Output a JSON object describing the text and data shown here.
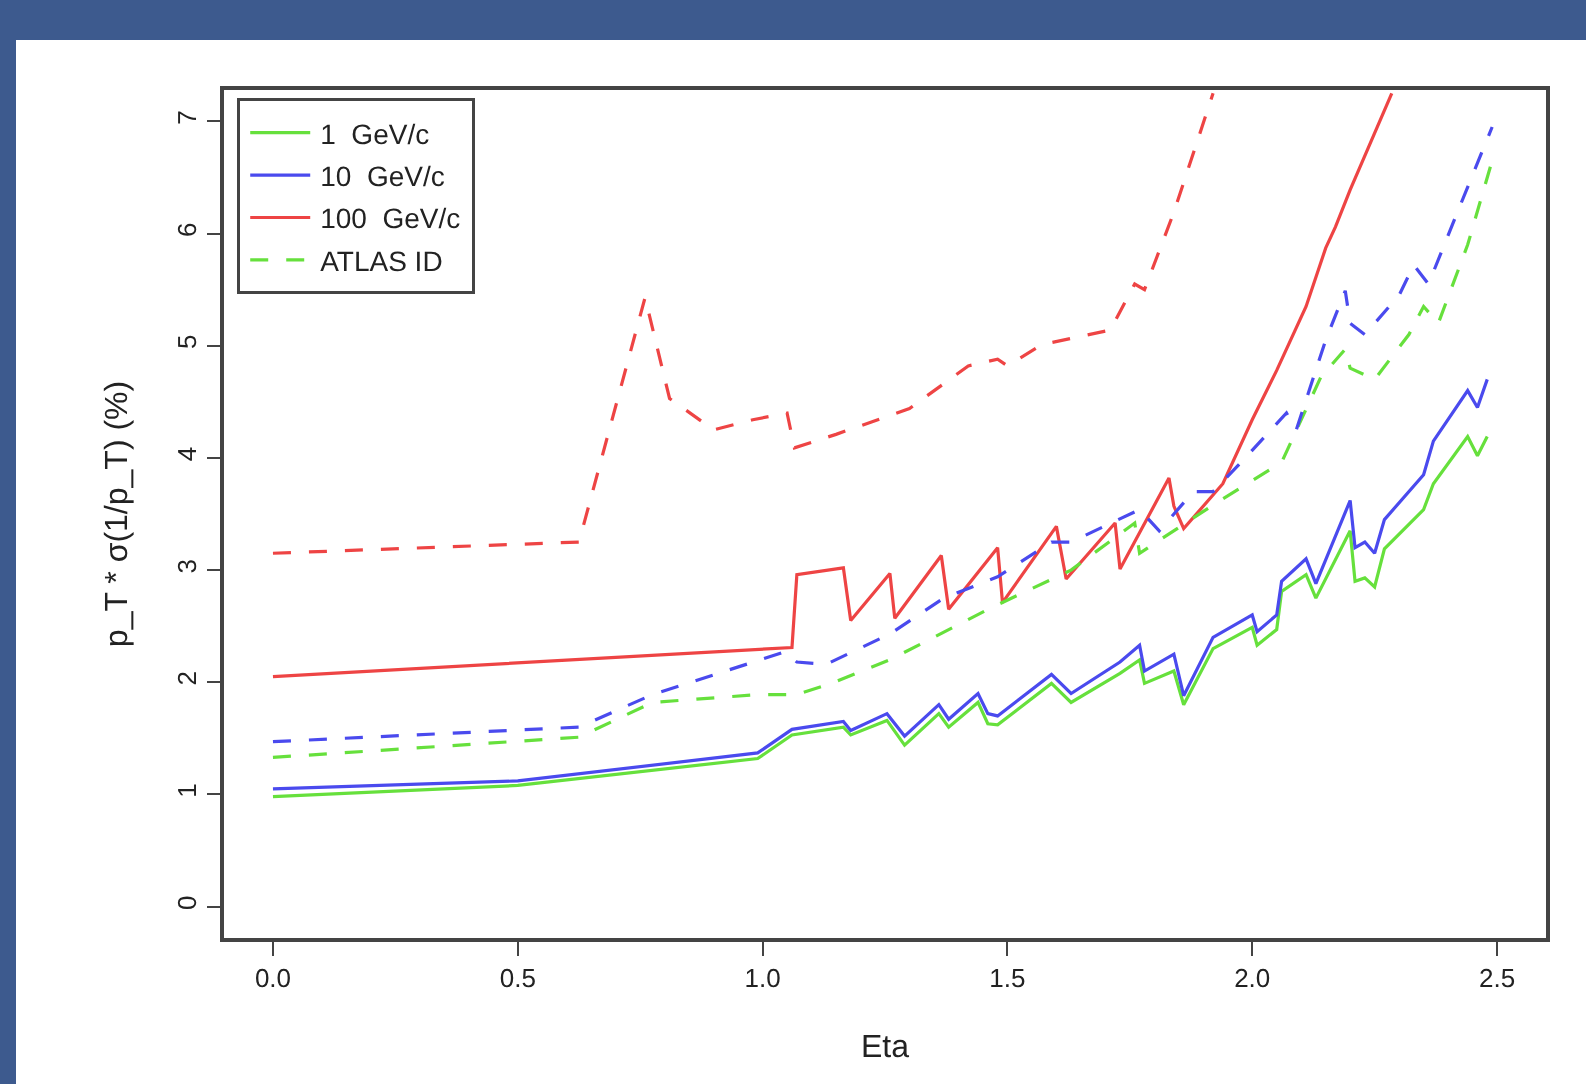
{
  "chart_data": {
    "type": "line",
    "xlabel": "Eta",
    "ylabel": "p_T * σ(1/p_T) (%)",
    "xlim": [
      -0.1,
      2.6
    ],
    "ylim": [
      -0.28,
      7.28
    ],
    "xticks": [
      {
        "value": 0,
        "label": "0.0"
      },
      {
        "value": 0.5,
        "label": "0.5"
      },
      {
        "value": 1,
        "label": "1.0"
      },
      {
        "value": 1.5,
        "label": "1.5"
      },
      {
        "value": 2,
        "label": "2.0"
      },
      {
        "value": 2.5,
        "label": "2.5"
      }
    ],
    "yticks": [
      0,
      1,
      2,
      3,
      4,
      5,
      6,
      7
    ],
    "grid": false,
    "legend": "top left",
    "marker": "none",
    "series": [
      {
        "name": "1  GeV/c",
        "color": "#66e03c",
        "line_style": "solid",
        "x": [
          0,
          0.5,
          0.99,
          1.06,
          1.165,
          1.18,
          1.254,
          1.29,
          1.36,
          1.38,
          1.44,
          1.46,
          1.48,
          1.59,
          1.63,
          1.73,
          1.77,
          1.78,
          1.84,
          1.86,
          1.92,
          2.0,
          2.01,
          2.05,
          2.06,
          2.11,
          2.13,
          2.2,
          2.21,
          2.23,
          2.25,
          2.27,
          2.35,
          2.37,
          2.44,
          2.46,
          2.48
        ],
        "values": [
          0.98,
          1.08,
          1.32,
          1.53,
          1.6,
          1.53,
          1.66,
          1.44,
          1.72,
          1.6,
          1.82,
          1.63,
          1.62,
          1.99,
          1.82,
          2.08,
          2.2,
          1.99,
          2.1,
          1.8,
          2.3,
          2.49,
          2.33,
          2.47,
          2.81,
          2.96,
          2.75,
          3.35,
          2.9,
          2.93,
          2.85,
          3.19,
          3.54,
          3.77,
          4.19,
          4.02,
          4.19
        ]
      },
      {
        "name": "10  GeV/c",
        "color": "#4a4aee",
        "line_style": "solid",
        "x": [
          0,
          0.5,
          0.99,
          1.06,
          1.165,
          1.18,
          1.254,
          1.29,
          1.36,
          1.38,
          1.44,
          1.46,
          1.48,
          1.59,
          1.63,
          1.73,
          1.77,
          1.78,
          1.84,
          1.86,
          1.92,
          2.0,
          2.01,
          2.05,
          2.06,
          2.11,
          2.13,
          2.2,
          2.21,
          2.23,
          2.25,
          2.27,
          2.35,
          2.37,
          2.44,
          2.46,
          2.48
        ],
        "values": [
          1.05,
          1.12,
          1.37,
          1.58,
          1.65,
          1.57,
          1.72,
          1.52,
          1.8,
          1.67,
          1.9,
          1.72,
          1.7,
          2.07,
          1.9,
          2.18,
          2.33,
          2.1,
          2.25,
          1.88,
          2.4,
          2.6,
          2.45,
          2.6,
          2.9,
          3.1,
          2.88,
          3.62,
          3.2,
          3.25,
          3.15,
          3.45,
          3.85,
          4.15,
          4.6,
          4.45,
          4.7
        ]
      },
      {
        "name": "100  GeV/c",
        "color": "#ee4444",
        "line_style": "solid",
        "x": [
          0,
          1.06,
          1.07,
          1.165,
          1.18,
          1.26,
          1.27,
          1.365,
          1.38,
          1.48,
          1.49,
          1.6,
          1.62,
          1.72,
          1.73,
          1.83,
          1.84,
          1.86,
          1.94,
          2.0,
          2.05,
          2.11,
          2.15,
          2.17,
          2.2,
          2.285
        ],
        "values": [
          2.05,
          2.31,
          2.96,
          3.02,
          2.55,
          2.97,
          2.57,
          3.13,
          2.65,
          3.2,
          2.71,
          3.39,
          2.92,
          3.42,
          3.01,
          3.82,
          3.57,
          3.37,
          3.77,
          4.34,
          4.78,
          5.35,
          5.87,
          6.06,
          6.39,
          7.25
        ]
      },
      {
        "name": "ATLAS ID",
        "color": "#66e03c",
        "line_style": "dashed",
        "x": [
          0,
          0.625,
          0.775,
          0.99,
          1.07,
          1.14,
          1.26,
          1.465,
          1.63,
          1.76,
          1.77,
          1.92,
          2.06,
          2.14,
          2.19,
          2.2,
          2.25,
          2.32,
          2.35,
          2.38,
          2.44,
          2.49
        ],
        "values": [
          1.33,
          1.51,
          1.82,
          1.89,
          1.89,
          1.99,
          2.2,
          2.66,
          3.0,
          3.42,
          3.15,
          3.58,
          3.96,
          4.72,
          4.97,
          4.8,
          4.7,
          5.1,
          5.35,
          5.2,
          5.9,
          6.65
        ]
      },
      {
        "color": "#4a4aee",
        "line_style": "dashed",
        "x": [
          0,
          0.625,
          0.775,
          1.045,
          1.07,
          1.13,
          1.26,
          1.37,
          1.48,
          1.59,
          1.63,
          1.77,
          1.81,
          1.88,
          1.92,
          1.99,
          2.07,
          2.09,
          2.15,
          2.19,
          2.2,
          2.23,
          2.3,
          2.33,
          2.36,
          2.42,
          2.49
        ],
        "values": [
          1.47,
          1.6,
          1.89,
          2.27,
          2.18,
          2.16,
          2.43,
          2.75,
          2.94,
          3.25,
          3.25,
          3.54,
          3.35,
          3.7,
          3.7,
          4.02,
          4.4,
          4.25,
          5.05,
          5.49,
          5.2,
          5.1,
          5.45,
          5.72,
          5.55,
          6.2,
          6.95
        ]
      },
      {
        "color": "#ee4444",
        "line_style": "dashed",
        "x": [
          0,
          0.625,
          0.76,
          0.81,
          0.9,
          0.98,
          1.05,
          1.065,
          1.15,
          1.3,
          1.42,
          1.48,
          1.5,
          1.57,
          1.71,
          1.76,
          1.78,
          1.84,
          1.92
        ],
        "values": [
          3.15,
          3.25,
          5.43,
          4.53,
          4.25,
          4.34,
          4.4,
          4.09,
          4.21,
          4.44,
          4.82,
          4.88,
          4.82,
          5.01,
          5.14,
          5.55,
          5.5,
          6.19,
          7.25
        ]
      }
    ]
  }
}
